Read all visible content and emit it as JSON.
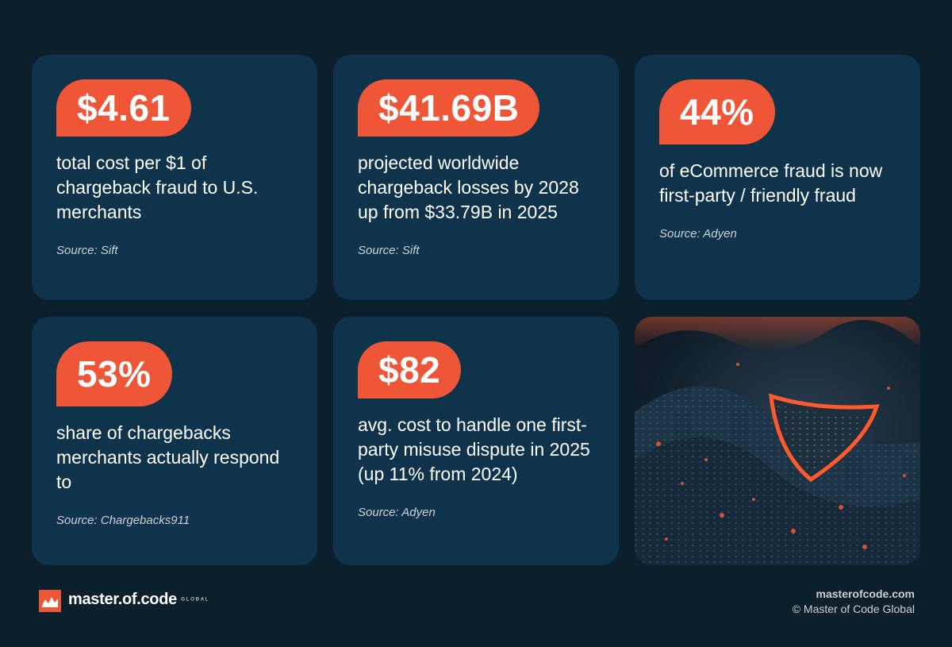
{
  "cards": [
    {
      "stat": "$4.61",
      "text": "total cost per $1 of chargeback fraud to U.S. merchants",
      "source": "Source: Sift"
    },
    {
      "stat": "$41.69B",
      "text": "projected worldwide chargeback losses by 2028 up from $33.79B in 2025",
      "source": "Source: Sift"
    },
    {
      "stat": "44%",
      "text": "of eCommerce fraud is now first-party / friendly fraud",
      "source": "Source: Adyen"
    },
    {
      "stat": "53%",
      "text": "share of chargebacks merchants actually respond to",
      "source": "Source: Chargebacks911"
    },
    {
      "stat": "$82",
      "text": "avg. cost to handle one first-party misuse dispute in 2025 (up 11% from 2024)",
      "source": "Source: Adyen"
    }
  ],
  "footer": {
    "brand": "master.of.code",
    "brand_suffix": "GLOBAL",
    "site": "masterofcode.com",
    "copyright": "© Master of Code Global"
  }
}
